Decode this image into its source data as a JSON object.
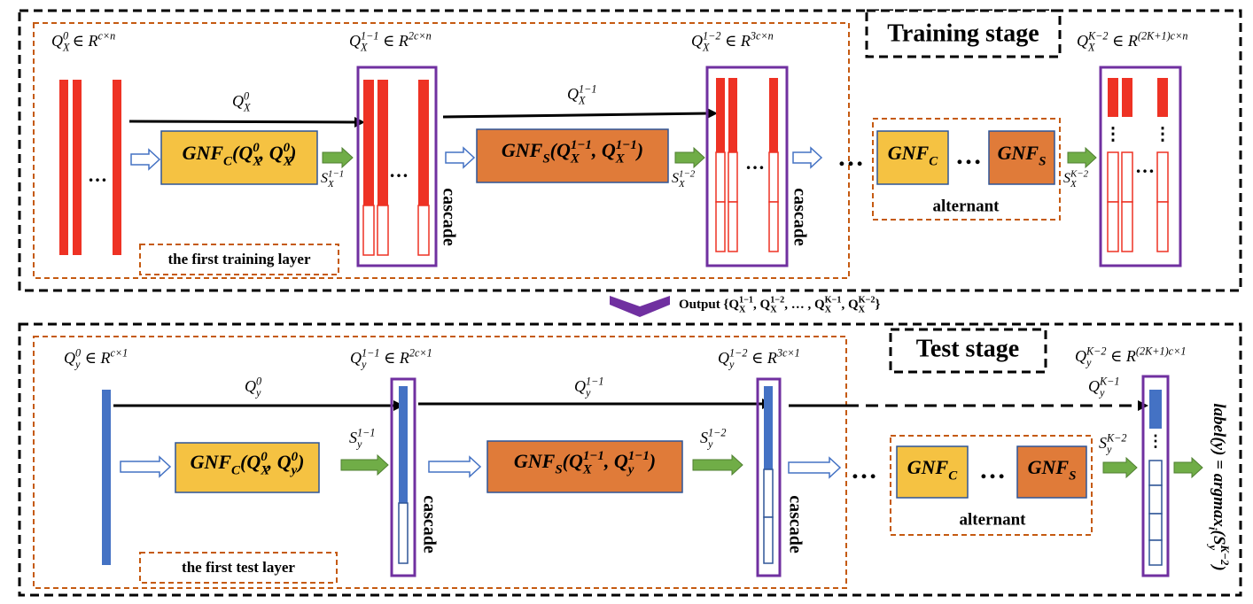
{
  "training": {
    "title": "Training stage",
    "first_layer": "the first training layer",
    "cascade": "cascade",
    "alternant": "alternant",
    "dots": "…",
    "vdots": "⋮",
    "input_label": [
      {
        "t": "Q"
      },
      {
        "sub": "X"
      },
      {
        "sup": "0"
      },
      {
        "t": " ∈ R"
      },
      {
        "sup": "c×n"
      }
    ],
    "input_arrow": [
      {
        "t": "Q"
      },
      {
        "sub": "X"
      },
      {
        "sup": "0"
      }
    ],
    "gnf_c": [
      {
        "t": "GNF"
      },
      {
        "sub": "C"
      },
      {
        "t": "(Q"
      },
      {
        "sub": "X"
      },
      {
        "sup": "0"
      },
      {
        "t": ", Q"
      },
      {
        "sub": "X"
      },
      {
        "sup": "0"
      },
      {
        "t": ")"
      }
    ],
    "score_1": [
      {
        "t": "S"
      },
      {
        "sub": "X"
      },
      {
        "sup": "1−1"
      }
    ],
    "layer1_label": [
      {
        "t": "Q"
      },
      {
        "sub": "X"
      },
      {
        "sup": "1−1"
      },
      {
        "t": " ∈ R"
      },
      {
        "sup": "2c×n"
      }
    ],
    "layer1_arrow": [
      {
        "t": "Q"
      },
      {
        "sub": "X"
      },
      {
        "sup": "1−1"
      }
    ],
    "gnf_s": [
      {
        "t": "GNF"
      },
      {
        "sub": "S"
      },
      {
        "t": "(Q"
      },
      {
        "sub": "X"
      },
      {
        "sup": "1−1"
      },
      {
        "t": ", Q"
      },
      {
        "sub": "X"
      },
      {
        "sup": "1−1"
      },
      {
        "t": ")"
      }
    ],
    "score_2": [
      {
        "t": "S"
      },
      {
        "sub": "X"
      },
      {
        "sup": "1−2"
      }
    ],
    "layer2_label": [
      {
        "t": "Q"
      },
      {
        "sub": "X"
      },
      {
        "sup": "1−2"
      },
      {
        "t": " ∈ R"
      },
      {
        "sup": "3c×n"
      }
    ],
    "alt_gnf_c": [
      {
        "t": "GNF"
      },
      {
        "sub": "C"
      }
    ],
    "alt_gnf_s": [
      {
        "t": "GNF"
      },
      {
        "sub": "S"
      }
    ],
    "score_k": [
      {
        "t": "S"
      },
      {
        "sub": "X"
      },
      {
        "sup": "K−2"
      }
    ],
    "final_label": [
      {
        "t": "Q"
      },
      {
        "sub": "X"
      },
      {
        "sup": "K−2"
      },
      {
        "t": " ∈ R"
      },
      {
        "sup": "(2K+1)c×n"
      }
    ]
  },
  "output": [
    {
      "t": "Output {Q"
    },
    {
      "sub": "X"
    },
    {
      "sup": "1−1"
    },
    {
      "t": ", Q"
    },
    {
      "sub": "X"
    },
    {
      "sup": "1−2"
    },
    {
      "t": ", … , Q"
    },
    {
      "sub": "X"
    },
    {
      "sup": "K−1"
    },
    {
      "t": ", Q"
    },
    {
      "sub": "X"
    },
    {
      "sup": "K−2"
    },
    {
      "t": "}"
    }
  ],
  "test": {
    "title": "Test stage",
    "first_layer": "the first test layer",
    "cascade": "cascade",
    "alternant": "alternant",
    "dots": "…",
    "vdots": "⋮",
    "input_label": [
      {
        "t": "Q"
      },
      {
        "sub": "y"
      },
      {
        "sup": "0"
      },
      {
        "t": " ∈ R"
      },
      {
        "sup": "c×1"
      }
    ],
    "input_arrow": [
      {
        "t": "Q"
      },
      {
        "sub": "y"
      },
      {
        "sup": "0"
      }
    ],
    "gnf_c": [
      {
        "t": "GNF"
      },
      {
        "sub": "C"
      },
      {
        "t": "(Q"
      },
      {
        "sub": "X"
      },
      {
        "sup": "0"
      },
      {
        "t": ", Q"
      },
      {
        "sub": "y"
      },
      {
        "sup": "0"
      },
      {
        "t": ")"
      }
    ],
    "score_1": [
      {
        "t": "S"
      },
      {
        "sub": "y"
      },
      {
        "sup": "1−1"
      }
    ],
    "layer1_label": [
      {
        "t": "Q"
      },
      {
        "sub": "y"
      },
      {
        "sup": "1−1"
      },
      {
        "t": " ∈ R"
      },
      {
        "sup": "2c×1"
      }
    ],
    "layer1_arrow": [
      {
        "t": "Q"
      },
      {
        "sub": "y"
      },
      {
        "sup": "1−1"
      }
    ],
    "gnf_s": [
      {
        "t": "GNF"
      },
      {
        "sub": "S"
      },
      {
        "t": "(Q"
      },
      {
        "sub": "X"
      },
      {
        "sup": "1−1"
      },
      {
        "t": ", Q"
      },
      {
        "sub": "y"
      },
      {
        "sup": "1−1"
      },
      {
        "t": ")"
      }
    ],
    "score_2": [
      {
        "t": "S"
      },
      {
        "sub": "y"
      },
      {
        "sup": "1−2"
      }
    ],
    "layer2_label": [
      {
        "t": "Q"
      },
      {
        "sub": "y"
      },
      {
        "sup": "1−2"
      },
      {
        "t": " ∈ R"
      },
      {
        "sup": "3c×1"
      }
    ],
    "skip_arrow": [
      {
        "t": "Q"
      },
      {
        "sub": "y"
      },
      {
        "sup": "K−1"
      }
    ],
    "alt_gnf_c": [
      {
        "t": "GNF"
      },
      {
        "sub": "C"
      }
    ],
    "alt_gnf_s": [
      {
        "t": "GNF"
      },
      {
        "sub": "S"
      }
    ],
    "score_k": [
      {
        "t": "S"
      },
      {
        "sub": "y"
      },
      {
        "sup": "K−2"
      }
    ],
    "final_label": [
      {
        "t": "Q"
      },
      {
        "sub": "y"
      },
      {
        "sup": "K−2"
      },
      {
        "t": " ∈ R"
      },
      {
        "sup": "(2K+1)c×1"
      }
    ],
    "result": [
      {
        "t": "label(y) = argmax"
      },
      {
        "sub": "i"
      },
      {
        "t": "(S"
      },
      {
        "sub": "y"
      },
      {
        "sup": "K−2"
      },
      {
        "t": ")"
      }
    ]
  }
}
